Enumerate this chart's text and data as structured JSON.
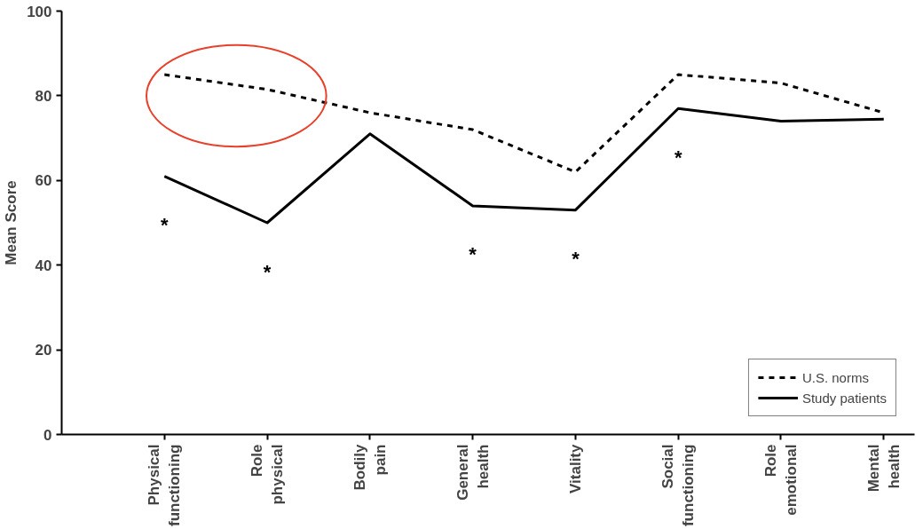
{
  "chart_data": {
    "type": "line",
    "ylabel": "Mean Score",
    "categories": [
      "Physical functioning",
      "Role physical",
      "Bodily pain",
      "General health",
      "Vitality",
      "Social functioning",
      "Role emotional",
      "Mental health"
    ],
    "series": [
      {
        "name": "U.S. norms",
        "color": "#000000",
        "line_style": "dashed",
        "values": [
          85,
          81.5,
          76,
          72,
          62,
          85,
          83,
          76
        ]
      },
      {
        "name": "Study patients",
        "color": "#000000",
        "line_style": "solid",
        "values": [
          61,
          50,
          71,
          54,
          53,
          77,
          74,
          74.5
        ]
      }
    ],
    "ylim": [
      0,
      100
    ],
    "yticks": [
      0,
      20,
      40,
      60,
      80,
      100
    ],
    "grid": false,
    "legend": "bottom right",
    "marker": "none",
    "annotations": [
      {
        "text": "*",
        "x": "Physical functioning",
        "y": 61
      },
      {
        "text": "*",
        "x": "Role physical",
        "y": 50
      },
      {
        "text": "*",
        "x": "General health",
        "y": 54
      },
      {
        "text": "*",
        "x": "Vitality",
        "y": 53
      },
      {
        "text": "*",
        "x": "Social functioning",
        "y": 77
      }
    ]
  }
}
